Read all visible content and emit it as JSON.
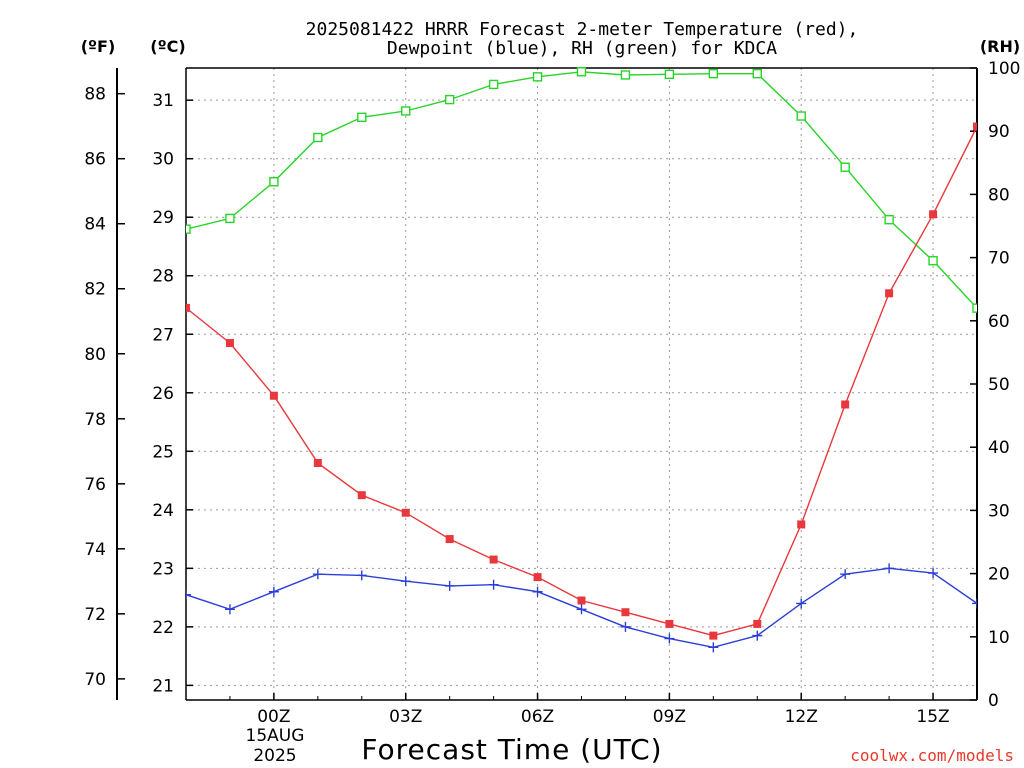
{
  "chart_data": {
    "type": "line",
    "title_lines": [
      "2025081422 HRRR Forecast 2-meter Temperature (red),",
      "Dewpoint (blue), RH (green) for KDCA"
    ],
    "xlabel": "Forecast Time (UTC)",
    "credit": "coolwx.com/models",
    "date_label": [
      "15AUG",
      "2025"
    ],
    "axes": {
      "left_f": {
        "unit": "(ºF)",
        "ticks": [
          70,
          72,
          74,
          76,
          78,
          80,
          82,
          84,
          86,
          88
        ]
      },
      "left_c": {
        "unit": "(ºC)",
        "ticks": [
          21,
          22,
          23,
          24,
          25,
          26,
          27,
          28,
          29,
          30,
          31
        ],
        "ylim": [
          20.75,
          31.55
        ]
      },
      "right_rh": {
        "unit": "(RH)",
        "ticks": [
          0,
          10,
          20,
          30,
          40,
          50,
          60,
          70,
          80,
          90,
          100
        ],
        "ylim": [
          0,
          100
        ]
      }
    },
    "x_hours": [
      -2,
      -1,
      0,
      1,
      2,
      3,
      4,
      5,
      6,
      7,
      8,
      9,
      10,
      11,
      12,
      13,
      14,
      15,
      16
    ],
    "x_range": [
      -2,
      16
    ],
    "x_ticks": [
      {
        "hour": 0,
        "label": "00Z"
      },
      {
        "hour": 3,
        "label": "03Z"
      },
      {
        "hour": 6,
        "label": "06Z"
      },
      {
        "hour": 9,
        "label": "09Z"
      },
      {
        "hour": 12,
        "label": "12Z"
      },
      {
        "hour": 15,
        "label": "15Z"
      }
    ],
    "grid": true,
    "series": [
      {
        "name": "Temperature",
        "axis": "celsius",
        "color": "#e8383d",
        "marker": "filled-square",
        "values": [
          27.45,
          26.85,
          25.95,
          24.8,
          24.25,
          23.95,
          23.5,
          23.15,
          22.85,
          22.45,
          22.25,
          22.05,
          21.85,
          22.05,
          23.75,
          25.8,
          27.7,
          29.05,
          30.55
        ]
      },
      {
        "name": "Dewpoint",
        "axis": "celsius",
        "color": "#2b3fd6",
        "marker": "plus",
        "values": [
          22.55,
          22.3,
          22.6,
          22.9,
          22.88,
          22.78,
          22.7,
          22.72,
          22.6,
          22.3,
          22.0,
          21.8,
          21.65,
          21.85,
          22.4,
          22.9,
          23.0,
          22.92,
          22.4
        ]
      },
      {
        "name": "RH",
        "axis": "rh",
        "color": "#27d427",
        "marker": "open-square",
        "values": [
          74.5,
          76.2,
          82,
          89,
          92.2,
          93.2,
          95,
          97.4,
          98.6,
          99.4,
          98.9,
          99.0,
          99.1,
          99.1,
          92.4,
          84.3,
          76,
          69.5,
          62
        ]
      }
    ]
  }
}
